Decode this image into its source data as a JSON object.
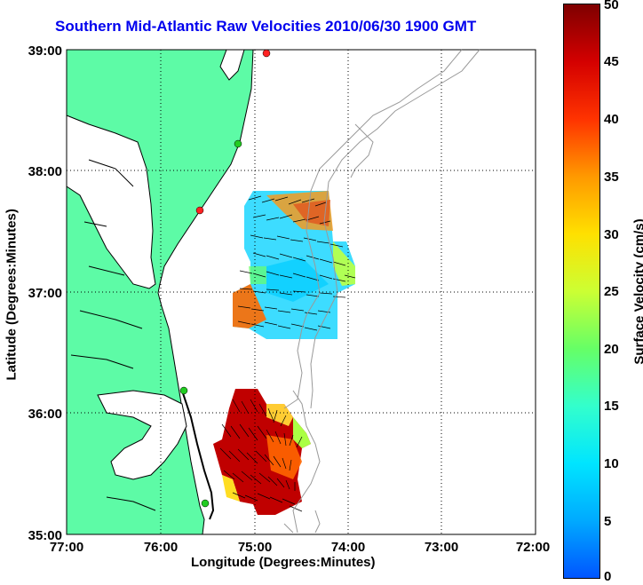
{
  "title": "Southern Mid-Atlantic Raw Velocities 2010/06/30 1900 GMT",
  "x_axis": {
    "label": "Longitude (Degrees:Minutes)",
    "ticks": [
      "77:00",
      "76:00",
      "75:00",
      "74:00",
      "73:00",
      "72:00"
    ]
  },
  "y_axis": {
    "label": "Latitude (Degrees:Minutes)",
    "ticks": [
      "39:00",
      "38:00",
      "37:00",
      "36:00",
      "35:00"
    ]
  },
  "colorbar": {
    "label": "Surface Velocity (cm/s)",
    "ticks": [
      "50",
      "45",
      "40",
      "35",
      "30",
      "25",
      "20",
      "15",
      "10",
      "5",
      "0"
    ],
    "range": [
      0,
      50
    ]
  },
  "colors": {
    "land": "#5dfba6",
    "coast": "#000000",
    "bathymetry": "#999999",
    "title": "#0000ee"
  },
  "stations": [
    {
      "lon": -74.85,
      "lat": 38.97,
      "color": "#ff2222"
    },
    {
      "lon": -75.15,
      "lat": 38.22,
      "color": "#22cc22"
    },
    {
      "lon": -75.57,
      "lat": 37.67,
      "color": "#ff2222"
    },
    {
      "lon": -75.72,
      "lat": 36.18,
      "color": "#22cc22"
    },
    {
      "lon": -75.52,
      "lat": 35.25,
      "color": "#22cc22"
    }
  ]
}
